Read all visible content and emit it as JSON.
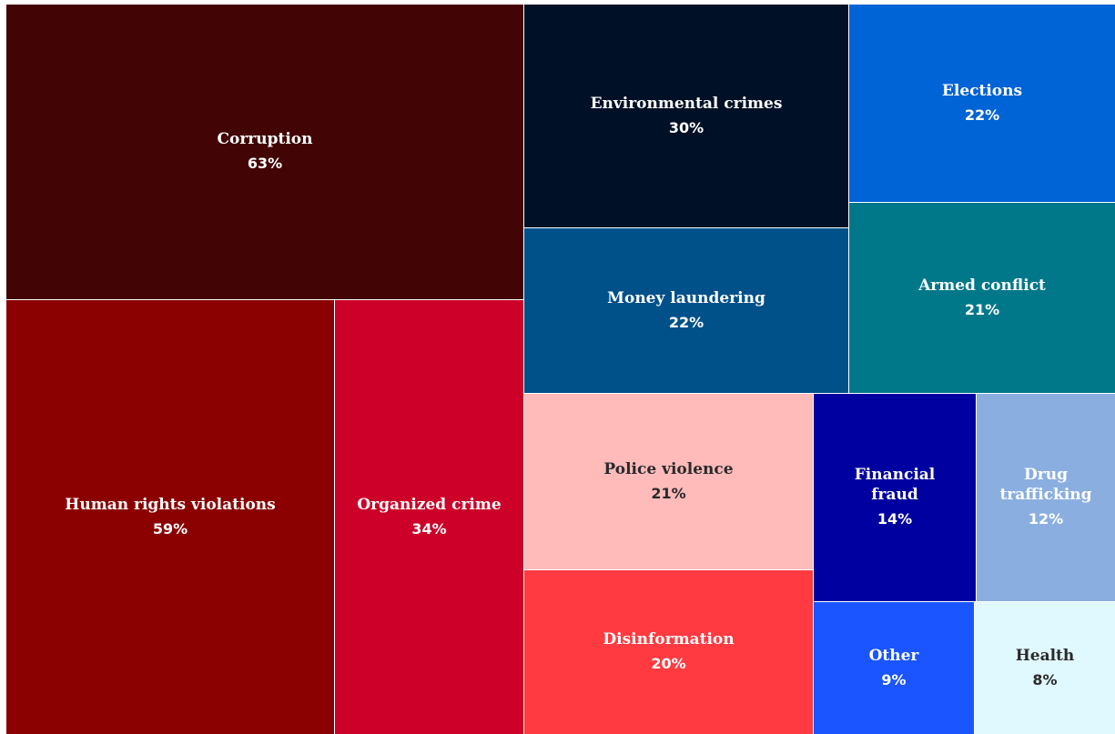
{
  "chart_data": {
    "type": "treemap",
    "categories": [
      "Corruption",
      "Human rights violations",
      "Organized crime",
      "Environmental crimes",
      "Elections",
      "Money laundering",
      "Armed conflict",
      "Police violence",
      "Disinformation",
      "Financial fraud",
      "Drug trafficking",
      "Other",
      "Health"
    ],
    "values": [
      63,
      59,
      34,
      30,
      22,
      22,
      21,
      21,
      20,
      14,
      12,
      9,
      8
    ],
    "value_labels": [
      "63%",
      "59%",
      "34%",
      "30%",
      "22%",
      "22%",
      "21%",
      "21%",
      "20%",
      "14%",
      "12%",
      "9%",
      "8%"
    ],
    "colors": [
      "#420404",
      "#8b0000",
      "#cc0029",
      "#001026",
      "#0063d6",
      "#00508a",
      "#00788a",
      "#ffbaba",
      "#ff3a40",
      "#0000a0",
      "#8aaee0",
      "#1a55ff",
      "#e0f8ff"
    ]
  }
}
